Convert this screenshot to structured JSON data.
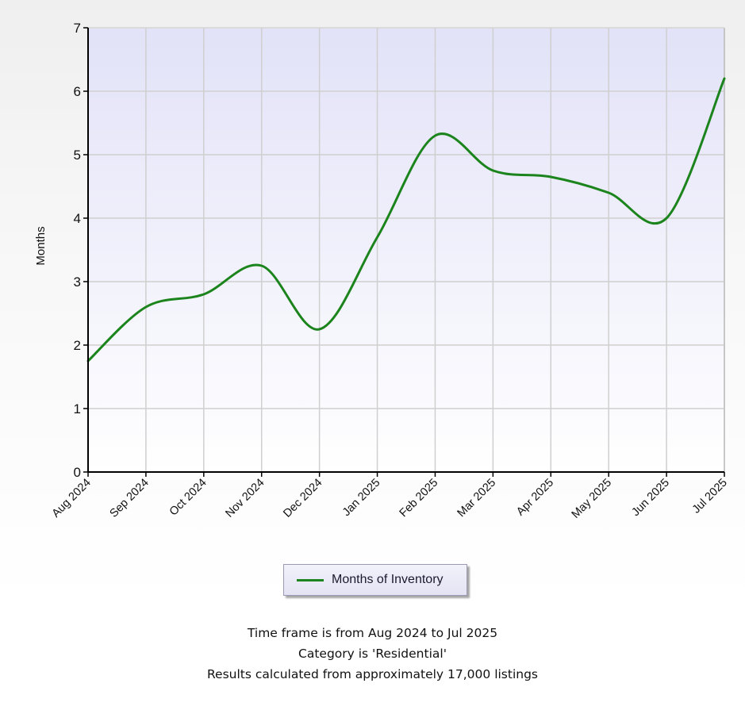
{
  "chart_data": {
    "type": "line",
    "title": "",
    "xlabel": "",
    "ylabel": "Months",
    "ylim": [
      0,
      7
    ],
    "yticks": [
      0,
      1,
      2,
      3,
      4,
      5,
      6,
      7
    ],
    "grid": true,
    "smooth": true,
    "legend_position": "bottom-center",
    "categories": [
      "Aug 2024",
      "Sep 2024",
      "Oct 2024",
      "Nov 2024",
      "Dec 2024",
      "Jan 2025",
      "Feb 2025",
      "Mar 2025",
      "Apr 2025",
      "May 2025",
      "Jun 2025",
      "Jul 2025"
    ],
    "series": [
      {
        "name": "Months of Inventory",
        "color": "#1c841c",
        "values": [
          1.75,
          2.6,
          2.8,
          3.25,
          2.25,
          3.7,
          5.3,
          4.75,
          4.65,
          4.4,
          4.0,
          6.2
        ]
      }
    ]
  },
  "colors": {
    "plot_top": "#e2e2f8",
    "plot_bottom": "#ffffff",
    "grid": "#cfcfcf",
    "axis": "#000000",
    "line": "#1c841c"
  },
  "footer": {
    "line1": "Time frame is from Aug 2024 to Jul 2025",
    "line2": "Category is 'Residential'",
    "line3": "Results calculated from approximately 17,000 listings"
  }
}
